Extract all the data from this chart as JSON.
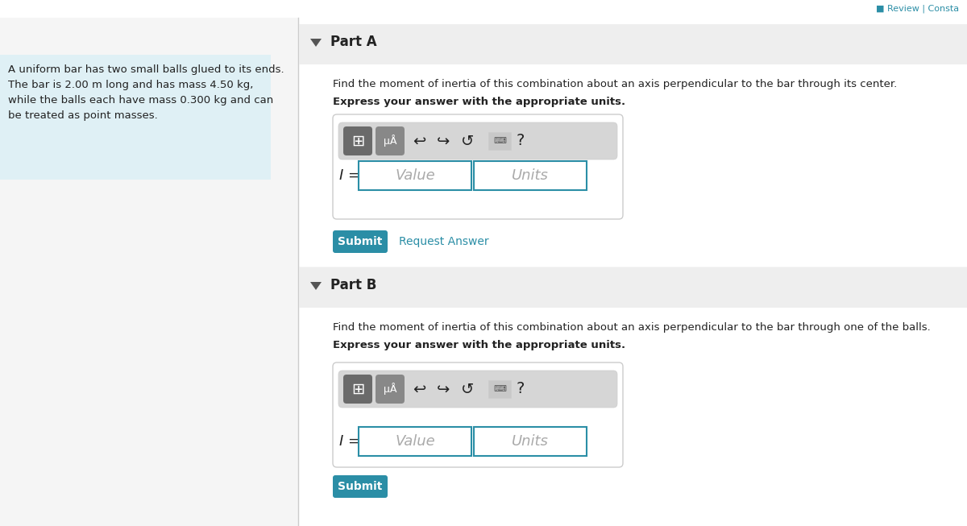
{
  "bg_color": "#f5f5f5",
  "white": "#ffffff",
  "left_panel_bg": "#dff0f5",
  "left_panel_text_lines": [
    "A uniform bar has two small balls glued to its ends.",
    "The bar is 2.00 m long and has mass 4.50 kg,",
    "while the balls each have mass 0.300 kg and can",
    "be treated as point masses."
  ],
  "part_a_label": "Part A",
  "part_a_text1": "Find the moment of inertia of this combination about an axis perpendicular to the bar through its center.",
  "part_a_text2": "Express your answer with the appropriate units.",
  "part_b_label": "Part B",
  "part_b_text1": "Find the moment of inertia of this combination about an axis perpendicular to the bar through one of the balls.",
  "part_b_text2": "Express your answer with the appropriate units.",
  "I_label": "I =",
  "value_placeholder": "Value",
  "units_placeholder": "Units",
  "submit_text": "Submit",
  "request_answer_text": "Request Answer",
  "submit_color": "#2b8ea6",
  "request_answer_color": "#2b8ea6",
  "teal_color": "#2b8ea6",
  "border_color": "#cccccc",
  "input_border_color": "#2b8ea6",
  "toolbar_bg": "#d6d6d6",
  "text_color_dark": "#222222",
  "triangle_color": "#555555",
  "header_bg": "#eeeeee",
  "review_color": "#2b8ea6",
  "divider_color": "#cccccc",
  "icon_gray_dark": "#6a6a6a",
  "icon_gray_light": "#888888"
}
